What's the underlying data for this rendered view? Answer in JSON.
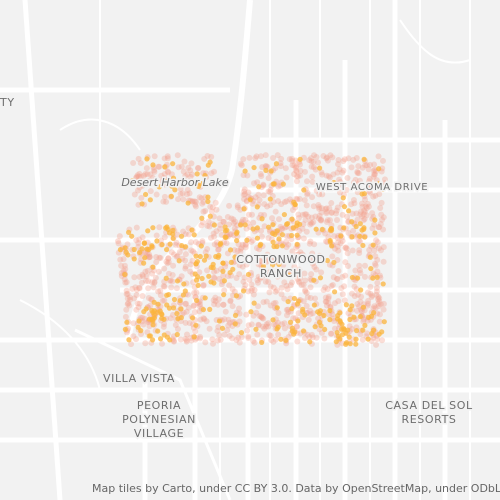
{
  "places": [
    {
      "lines": [
        "TY"
      ]
    },
    {
      "lines": [
        "Desert Harbor Lake"
      ]
    },
    {
      "lines": [
        "WEST ACOMA DRIVE"
      ]
    },
    {
      "lines": [
        "COTTONWOOD",
        "RANCH"
      ]
    },
    {
      "lines": [
        "VILLA VISTA"
      ]
    },
    {
      "lines": [
        "PEORIA",
        "POLYNESIAN",
        "VILLAGE"
      ]
    },
    {
      "lines": [
        "CASA DEL SOL",
        "RESORTS"
      ]
    }
  ],
  "attribution": "Map tiles by Carto, under CC BY 3.0. Data by OpenStreetMap, under ODbL."
}
